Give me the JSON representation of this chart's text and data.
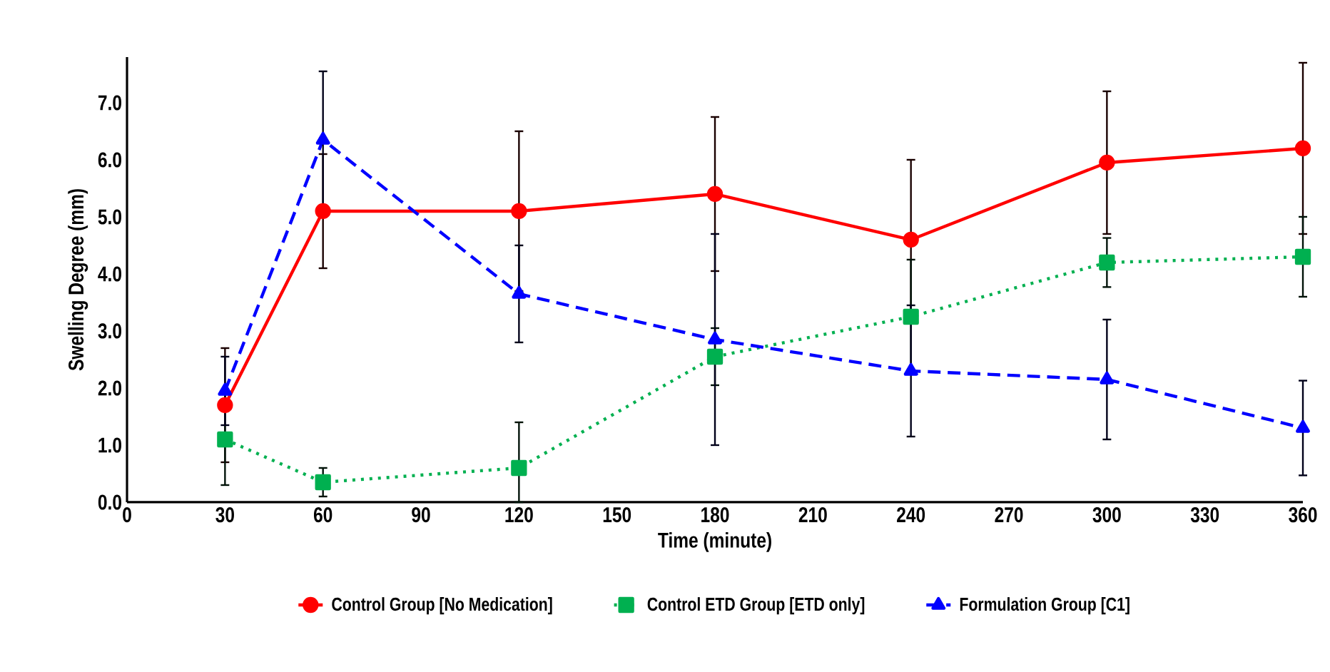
{
  "chart_data": {
    "type": "line",
    "xlabel": "Time (minute)",
    "ylabel": "Swelling Degree (mm)",
    "x": [
      30,
      60,
      120,
      180,
      240,
      300,
      360
    ],
    "xlim": [
      0,
      360
    ],
    "xticks": [
      0,
      30,
      60,
      90,
      120,
      150,
      180,
      210,
      240,
      270,
      300,
      330,
      360
    ],
    "ylim": [
      0,
      7.8
    ],
    "yticks": [
      {
        "value": 0,
        "label": "0.0"
      },
      {
        "value": 1,
        "label": "1.0"
      },
      {
        "value": 2,
        "label": "2.0"
      },
      {
        "value": 3,
        "label": "3.0"
      },
      {
        "value": 4,
        "label": "4.0"
      },
      {
        "value": 5,
        "label": "5.0"
      },
      {
        "value": 6,
        "label": "6.0"
      },
      {
        "value": 7,
        "label": "7.0"
      }
    ],
    "grid": false,
    "legend": "bottom",
    "series": [
      {
        "name": "Control Group [No Medication]",
        "color": "#ff0000",
        "marker": "circle",
        "line_style": "solid",
        "values": [
          1.7,
          5.1,
          5.1,
          5.4,
          4.6,
          5.95,
          6.2
        ],
        "errors": [
          1.0,
          1.0,
          1.4,
          1.35,
          1.4,
          1.25,
          1.5
        ]
      },
      {
        "name": "Control ETD Group [ETD only]",
        "color": "#00b050",
        "marker": "square",
        "line_style": "dotted",
        "values": [
          1.1,
          0.35,
          0.6,
          2.55,
          3.25,
          4.2,
          4.3
        ],
        "errors": [
          0.8,
          0.25,
          [
            0,
            1.4
          ],
          0.5,
          1.0,
          0.43,
          0.7
        ]
      },
      {
        "name": "Formulation Group [C1]",
        "color": "#0000ff",
        "marker": "triangle",
        "line_style": "dashed",
        "values": [
          1.95,
          6.35,
          3.65,
          2.85,
          2.3,
          2.15,
          1.3
        ],
        "errors": [
          0.6,
          1.2,
          0.85,
          1.85,
          1.15,
          1.05,
          0.83
        ]
      }
    ]
  }
}
